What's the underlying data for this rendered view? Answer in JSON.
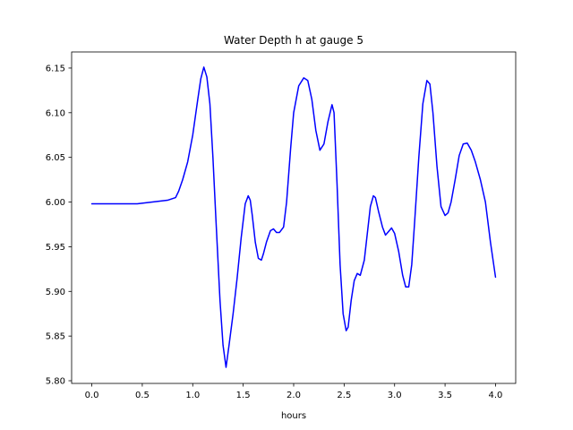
{
  "chart_data": {
    "type": "line",
    "title": "Water Depth h at gauge 5",
    "xlabel": "hours",
    "ylabel": "",
    "xlim": [
      -0.2,
      4.2
    ],
    "ylim": [
      5.797,
      6.168
    ],
    "xticks": [
      0.0,
      0.5,
      1.0,
      1.5,
      2.0,
      2.5,
      3.0,
      3.5,
      4.0
    ],
    "xtick_labels": [
      "0.0",
      "0.5",
      "1.0",
      "1.5",
      "2.0",
      "2.5",
      "3.0",
      "3.5",
      "4.0"
    ],
    "yticks": [
      5.8,
      5.85,
      5.9,
      5.95,
      6.0,
      6.05,
      6.1,
      6.15
    ],
    "ytick_labels": [
      "5.80",
      "5.85",
      "5.90",
      "5.95",
      "6.00",
      "6.05",
      "6.10",
      "6.15"
    ],
    "grid": false,
    "line_color": "#0000ff",
    "series": [
      {
        "x": [
          0.0,
          0.2,
          0.45,
          0.6,
          0.75,
          0.83,
          0.86,
          0.9,
          0.95,
          1.0,
          1.05,
          1.08,
          1.11,
          1.14,
          1.17,
          1.2,
          1.23,
          1.27,
          1.3,
          1.33,
          1.36,
          1.4,
          1.44,
          1.48,
          1.52,
          1.55,
          1.57,
          1.59,
          1.62,
          1.65,
          1.68,
          1.7,
          1.73,
          1.77,
          1.8,
          1.83,
          1.86,
          1.9,
          1.93,
          1.97,
          2.0,
          2.05,
          2.1,
          2.14,
          2.18,
          2.22,
          2.26,
          2.3,
          2.34,
          2.38,
          2.4,
          2.43,
          2.46,
          2.49,
          2.52,
          2.54,
          2.57,
          2.6,
          2.63,
          2.66,
          2.7,
          2.73,
          2.76,
          2.79,
          2.81,
          2.84,
          2.88,
          2.91,
          2.94,
          2.97,
          3.0,
          3.04,
          3.08,
          3.11,
          3.14,
          3.17,
          3.2,
          3.24,
          3.28,
          3.32,
          3.35,
          3.38,
          3.42,
          3.46,
          3.5,
          3.53,
          3.56,
          3.6,
          3.64,
          3.68,
          3.72,
          3.76,
          3.8,
          3.85,
          3.9,
          3.95,
          4.0
        ],
        "y": [
          5.998,
          5.998,
          5.998,
          6.0,
          6.002,
          6.005,
          6.012,
          6.025,
          6.045,
          6.075,
          6.115,
          6.138,
          6.151,
          6.14,
          6.11,
          6.05,
          5.98,
          5.89,
          5.84,
          5.815,
          5.84,
          5.875,
          5.915,
          5.96,
          5.998,
          6.007,
          6.002,
          5.985,
          5.955,
          5.937,
          5.935,
          5.942,
          5.955,
          5.968,
          5.97,
          5.966,
          5.966,
          5.972,
          6.0,
          6.06,
          6.1,
          6.13,
          6.139,
          6.136,
          6.115,
          6.08,
          6.058,
          6.065,
          6.09,
          6.109,
          6.1,
          6.02,
          5.93,
          5.875,
          5.856,
          5.86,
          5.89,
          5.912,
          5.92,
          5.918,
          5.935,
          5.965,
          5.995,
          6.007,
          6.005,
          5.99,
          5.972,
          5.963,
          5.967,
          5.971,
          5.965,
          5.945,
          5.918,
          5.905,
          5.905,
          5.93,
          5.98,
          6.05,
          6.11,
          6.136,
          6.132,
          6.1,
          6.04,
          5.995,
          5.985,
          5.988,
          6.0,
          6.025,
          6.052,
          6.065,
          6.066,
          6.058,
          6.045,
          6.025,
          6.0,
          5.955,
          5.916
        ]
      }
    ]
  }
}
